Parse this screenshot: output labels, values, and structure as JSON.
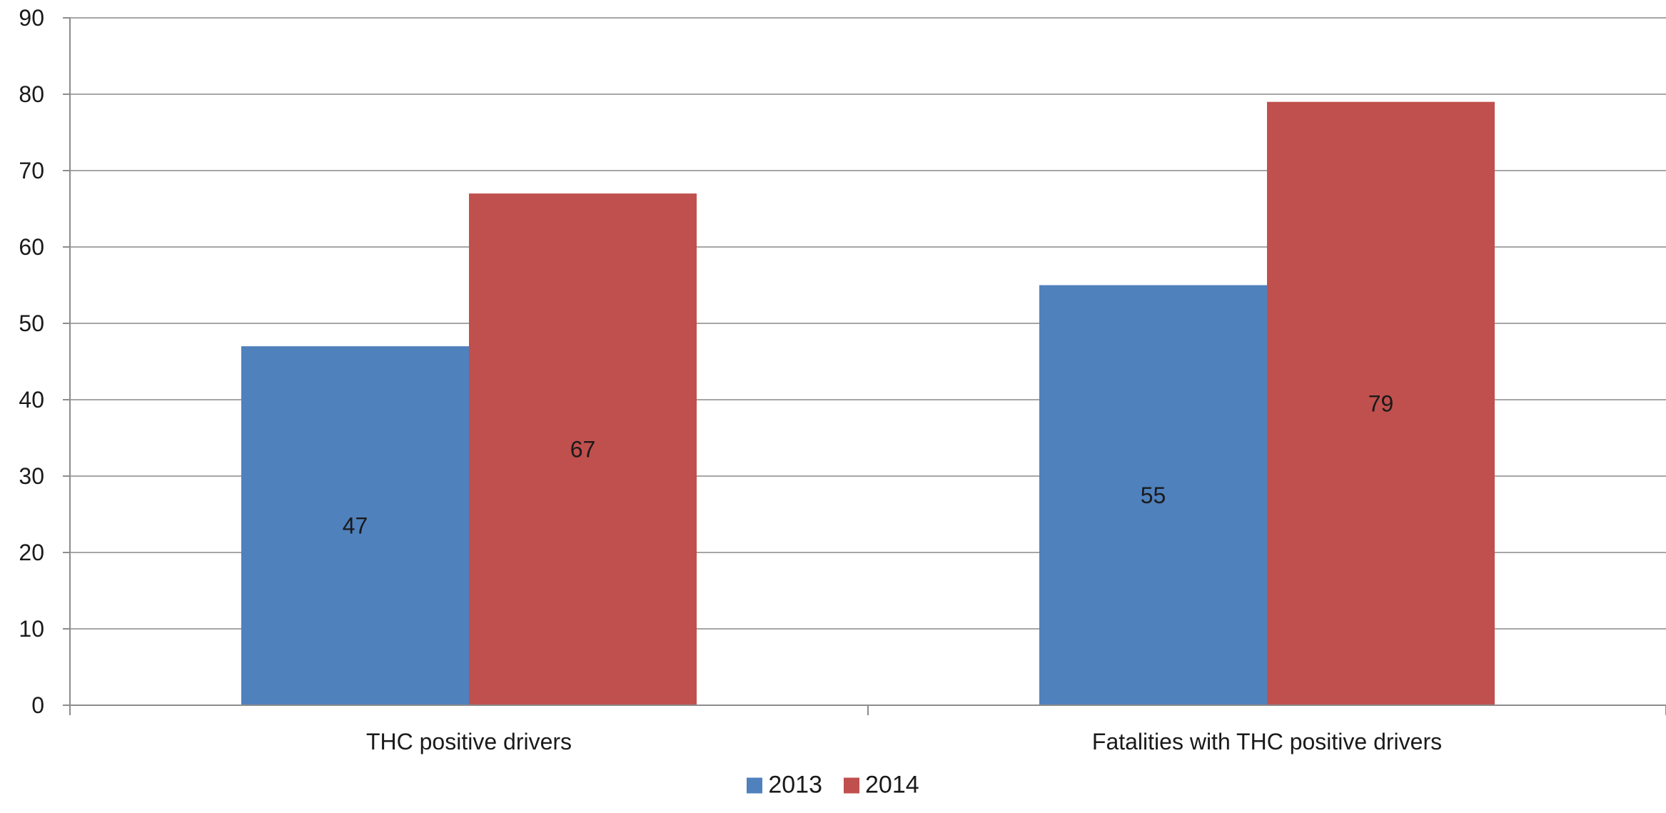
{
  "chart_data": {
    "type": "bar",
    "categories": [
      "THC positive drivers",
      "Fatalities with THC positive drivers"
    ],
    "series": [
      {
        "name": "2013",
        "values": [
          47,
          55
        ],
        "color": "#4f81bd"
      },
      {
        "name": "2014",
        "values": [
          67,
          79
        ],
        "color": "#c0504d"
      }
    ],
    "ylim": [
      0,
      90
    ],
    "yticks": [
      0,
      10,
      20,
      30,
      40,
      50,
      60,
      70,
      80,
      90
    ],
    "grid": true,
    "legend": "bottom",
    "data_labels": true
  }
}
